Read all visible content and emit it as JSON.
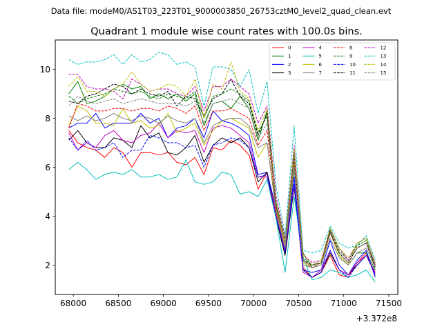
{
  "suptitle": "Data file: modeM0/AS1T03_223T01_9000003850_26753cztM0_level2_quad_clean.evt",
  "chart_data": {
    "type": "line",
    "title": "Quadrant 1 module wise count rates with 100.0s bins.",
    "xlabel": "",
    "ylabel": "",
    "x_offset_label": "+3.372e8",
    "xlim": [
      67800,
      71600
    ],
    "ylim": [
      0.8,
      11.2
    ],
    "xticks": [
      68000,
      68500,
      69000,
      69500,
      70000,
      70500,
      71000,
      71500
    ],
    "xtick_labels": [
      "68000",
      "68500",
      "69000",
      "69500",
      "70000",
      "70500",
      "71000",
      "71500"
    ],
    "yticks": [
      2,
      4,
      6,
      8,
      10
    ],
    "ytick_labels": [
      "2",
      "4",
      "6",
      "8",
      "10"
    ],
    "grid": false,
    "legend_position": "top-right",
    "legend_columns": 4,
    "x": [
      67950,
      68050,
      68150,
      68250,
      68350,
      68450,
      68550,
      68650,
      68750,
      68850,
      68950,
      69050,
      69150,
      69250,
      69350,
      69450,
      69550,
      69650,
      69750,
      69850,
      69950,
      70050,
      70150,
      70250,
      70350,
      70450,
      70550,
      70650,
      70750,
      70850,
      70950,
      71050,
      71150,
      71250,
      71350
    ],
    "series": [
      {
        "name": "0",
        "color": "#ff0000",
        "dash": "solid",
        "values": [
          7.5,
          7.0,
          6.8,
          6.7,
          6.4,
          6.8,
          6.6,
          6.0,
          6.6,
          6.6,
          6.5,
          6.6,
          6.2,
          6.1,
          6.4,
          5.7,
          6.8,
          6.7,
          7.1,
          6.9,
          6.5,
          5.1,
          5.8,
          4.1,
          2.4,
          5.2,
          1.9,
          1.5,
          1.7,
          2.4,
          1.6,
          1.5,
          2.1,
          2.5,
          1.6
        ]
      },
      {
        "name": "1",
        "color": "#008000",
        "dash": "solid",
        "values": [
          9.0,
          9.5,
          8.6,
          8.7,
          8.9,
          9.2,
          9.4,
          9.2,
          9.3,
          8.8,
          9.0,
          8.8,
          9.0,
          8.7,
          9.0,
          7.7,
          8.6,
          8.7,
          8.4,
          8.9,
          8.4,
          7.1,
          8.3,
          4.3,
          2.6,
          5.9,
          2.5,
          1.9,
          2.0,
          3.4,
          2.4,
          2.0,
          2.5,
          2.5,
          1.8
        ]
      },
      {
        "name": "2",
        "color": "#0000ff",
        "dash": "solid",
        "values": [
          7.6,
          7.8,
          7.8,
          8.2,
          7.6,
          7.8,
          7.8,
          7.8,
          8.2,
          7.8,
          8.0,
          7.2,
          7.6,
          7.7,
          8.0,
          7.2,
          8.3,
          7.9,
          7.8,
          7.6,
          7.3,
          5.7,
          5.8,
          4.3,
          2.5,
          5.6,
          1.8,
          1.7,
          1.8,
          3.0,
          2.0,
          1.6,
          2.2,
          2.6,
          1.5
        ]
      },
      {
        "name": "3",
        "color": "#000000",
        "dash": "solid",
        "values": [
          7.1,
          7.5,
          7.0,
          6.8,
          6.8,
          7.2,
          7.1,
          6.8,
          7.7,
          7.2,
          7.4,
          6.6,
          6.5,
          6.8,
          7.3,
          6.2,
          6.9,
          7.2,
          7.0,
          7.2,
          6.8,
          5.4,
          5.8,
          3.9,
          2.4,
          5.2,
          1.8,
          1.5,
          1.7,
          2.5,
          1.8,
          1.6,
          2.0,
          2.4,
          1.7
        ]
      },
      {
        "name": "4",
        "color": "#bf00bf",
        "dash": "solid",
        "values": [
          7.4,
          6.7,
          7.0,
          6.8,
          7.3,
          7.5,
          7.1,
          7.0,
          7.3,
          7.4,
          7.8,
          7.2,
          7.5,
          7.4,
          7.5,
          6.6,
          7.6,
          7.7,
          7.6,
          7.3,
          7.0,
          5.6,
          5.6,
          4.0,
          2.6,
          5.3,
          1.7,
          1.5,
          1.8,
          2.6,
          1.8,
          1.6,
          2.1,
          2.4,
          1.7
        ]
      },
      {
        "name": "5",
        "color": "#00bfbf",
        "dash": "solid",
        "values": [
          5.9,
          6.2,
          5.9,
          5.5,
          5.7,
          5.8,
          5.7,
          5.9,
          5.6,
          5.6,
          5.7,
          5.5,
          5.6,
          6.3,
          5.4,
          5.3,
          5.4,
          5.8,
          5.7,
          4.9,
          5.0,
          4.8,
          5.5,
          3.9,
          1.7,
          4.8,
          2.3,
          1.4,
          1.5,
          1.8,
          1.7,
          1.5,
          1.6,
          1.8,
          1.3
        ]
      },
      {
        "name": "6",
        "color": "#bfbf00",
        "dash": "solid",
        "values": [
          7.7,
          8.5,
          8.3,
          7.8,
          7.8,
          7.7,
          8.4,
          7.8,
          7.9,
          7.6,
          7.7,
          8.2,
          7.4,
          7.6,
          7.8,
          6.9,
          7.5,
          7.9,
          8.0,
          7.8,
          7.6,
          6.4,
          7.0,
          4.3,
          2.8,
          6.2,
          2.1,
          1.9,
          2.0,
          3.3,
          2.4,
          2.0,
          2.9,
          3.1,
          1.9
        ]
      },
      {
        "name": "7",
        "color": "#808080",
        "dash": "solid",
        "values": [
          8.1,
          7.9,
          8.1,
          7.9,
          8.0,
          8.2,
          8.0,
          7.9,
          8.1,
          8.0,
          7.8,
          8.1,
          7.9,
          7.8,
          8.0,
          7.0,
          7.7,
          7.9,
          8.0,
          8.0,
          7.7,
          6.8,
          7.0,
          4.2,
          2.7,
          6.0,
          2.0,
          1.9,
          2.0,
          3.1,
          2.3,
          2.0,
          2.5,
          2.7,
          1.9
        ]
      },
      {
        "name": "8",
        "color": "#ff0000",
        "dash": "dashed",
        "values": [
          7.6,
          8.6,
          8.5,
          8.3,
          8.3,
          8.4,
          8.4,
          8.3,
          8.4,
          8.4,
          8.3,
          8.5,
          8.4,
          8.2,
          8.5,
          7.5,
          8.3,
          8.3,
          8.4,
          8.2,
          8.0,
          6.9,
          7.5,
          4.4,
          2.9,
          6.3,
          2.2,
          1.9,
          2.1,
          3.3,
          2.5,
          2.1,
          2.7,
          2.9,
          1.9
        ]
      },
      {
        "name": "9",
        "color": "#008000",
        "dash": "dashed",
        "values": [
          8.9,
          8.6,
          8.8,
          8.9,
          9.0,
          9.2,
          9.1,
          9.0,
          9.1,
          8.9,
          8.8,
          9.0,
          8.9,
          8.8,
          9.1,
          8.0,
          8.9,
          9.0,
          9.2,
          9.0,
          8.7,
          7.4,
          8.1,
          4.6,
          3.0,
          6.6,
          2.3,
          2.0,
          2.1,
          3.5,
          2.6,
          2.2,
          2.8,
          3.0,
          2.0
        ]
      },
      {
        "name": "10",
        "color": "#0000ff",
        "dash": "dashed",
        "values": [
          7.2,
          6.7,
          7.1,
          6.7,
          6.8,
          7.0,
          6.4,
          6.7,
          6.7,
          7.3,
          7.2,
          7.0,
          7.0,
          6.8,
          6.9,
          6.0,
          6.9,
          7.0,
          7.2,
          7.1,
          6.8,
          5.6,
          5.7,
          4.0,
          2.5,
          5.3,
          1.8,
          1.5,
          1.7,
          2.6,
          1.8,
          1.5,
          2.0,
          2.4,
          1.6
        ]
      },
      {
        "name": "11",
        "color": "#000000",
        "dash": "dashed",
        "values": [
          8.7,
          8.6,
          8.9,
          9.0,
          9.2,
          9.4,
          9.3,
          9.0,
          9.2,
          9.0,
          8.9,
          9.1,
          8.5,
          8.9,
          8.8,
          8.1,
          8.8,
          9.0,
          9.6,
          8.9,
          8.6,
          7.3,
          8.2,
          4.4,
          3.0,
          6.5,
          2.2,
          2.0,
          2.1,
          3.4,
          2.5,
          2.1,
          2.7,
          2.9,
          1.9
        ]
      },
      {
        "name": "12",
        "color": "#bf00bf",
        "dash": "dashed",
        "values": [
          9.8,
          9.8,
          9.3,
          9.2,
          9.2,
          9.1,
          8.8,
          9.6,
          9.4,
          9.1,
          9.2,
          9.2,
          9.0,
          8.9,
          9.3,
          8.3,
          9.3,
          9.3,
          9.6,
          9.3,
          9.0,
          7.8,
          8.5,
          4.8,
          3.1,
          6.9,
          2.4,
          2.1,
          2.2,
          3.5,
          2.7,
          2.2,
          2.9,
          3.1,
          2.0
        ]
      },
      {
        "name": "13",
        "color": "#00bfbf",
        "dash": "dashed",
        "values": [
          10.4,
          10.2,
          10.3,
          10.3,
          10.4,
          10.6,
          10.2,
          10.6,
          10.3,
          10.4,
          10.7,
          10.6,
          10.2,
          10.3,
          10.1,
          8.5,
          10.1,
          10.1,
          10.0,
          9.3,
          10.0,
          8.2,
          9.5,
          5.2,
          3.2,
          7.7,
          2.6,
          2.5,
          2.6,
          3.6,
          2.9,
          2.7,
          2.8,
          3.2,
          2.2
        ]
      },
      {
        "name": "14",
        "color": "#bfbf00",
        "dash": "dashed",
        "values": [
          9.3,
          9.7,
          9.1,
          9.1,
          8.9,
          9.2,
          9.4,
          9.9,
          9.4,
          9.1,
          9.2,
          9.4,
          9.3,
          8.9,
          9.6,
          8.0,
          9.4,
          9.2,
          10.3,
          9.1,
          8.8,
          7.5,
          8.4,
          4.6,
          3.0,
          6.8,
          2.4,
          2.0,
          2.2,
          3.5,
          2.7,
          2.3,
          2.9,
          3.1,
          2.1
        ]
      },
      {
        "name": "15",
        "color": "#808080",
        "dash": "dashed",
        "values": [
          8.5,
          8.9,
          8.7,
          8.6,
          8.7,
          8.8,
          8.6,
          8.7,
          8.8,
          8.7,
          8.6,
          8.6,
          8.6,
          8.5,
          8.7,
          7.8,
          8.6,
          8.7,
          8.8,
          8.6,
          8.4,
          7.2,
          7.8,
          4.5,
          2.9,
          6.4,
          2.2,
          1.9,
          2.1,
          3.3,
          2.5,
          2.1,
          2.7,
          2.9,
          1.9
        ]
      }
    ]
  }
}
